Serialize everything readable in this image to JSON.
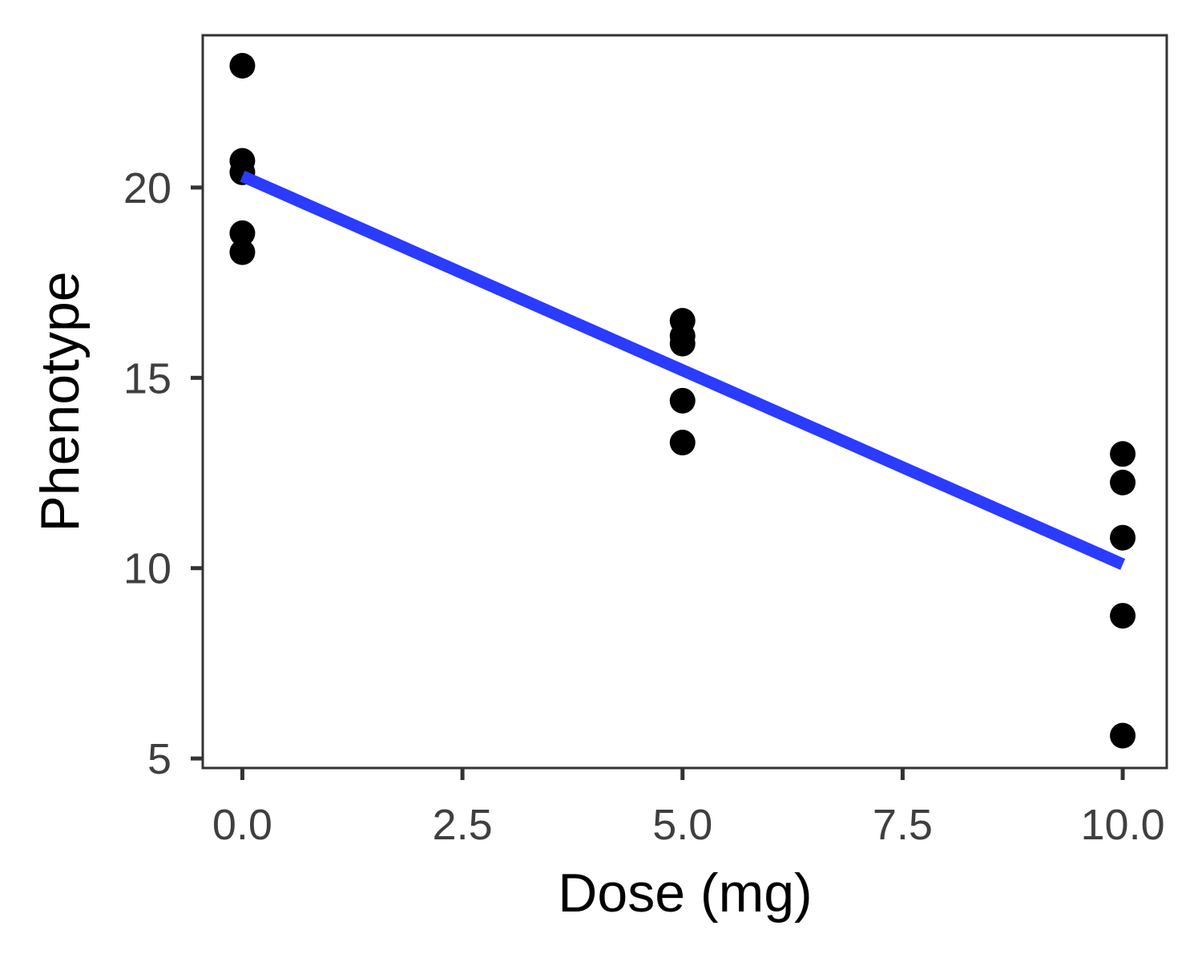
{
  "chart_data": {
    "type": "scatter",
    "title": "",
    "xlabel": "Dose (mg)",
    "ylabel": "Phenotype",
    "xlim": [
      -0.45,
      10.5
    ],
    "ylim": [
      4.75,
      24.0
    ],
    "x_ticks": [
      0,
      2.5,
      5,
      7.5,
      10
    ],
    "x_tick_labels": [
      "0.0",
      "2.5",
      "5.0",
      "7.5",
      "10.0"
    ],
    "y_ticks": [
      5,
      10,
      15,
      20
    ],
    "y_tick_labels": [
      "5",
      "10",
      "15",
      "20"
    ],
    "grid": false,
    "series": [
      {
        "kind": "points",
        "color": "#000000",
        "points": [
          {
            "x": 0,
            "y": 23.2
          },
          {
            "x": 0,
            "y": 20.7
          },
          {
            "x": 0,
            "y": 20.4
          },
          {
            "x": 0,
            "y": 18.8
          },
          {
            "x": 0,
            "y": 18.3
          },
          {
            "x": 5,
            "y": 16.5
          },
          {
            "x": 5,
            "y": 16.1
          },
          {
            "x": 5,
            "y": 15.9
          },
          {
            "x": 5,
            "y": 14.4
          },
          {
            "x": 5,
            "y": 13.3
          },
          {
            "x": 10,
            "y": 13.0
          },
          {
            "x": 10,
            "y": 12.25
          },
          {
            "x": 10,
            "y": 10.8
          },
          {
            "x": 10,
            "y": 8.75
          },
          {
            "x": 10,
            "y": 5.6
          }
        ]
      },
      {
        "kind": "fit-line",
        "color": "#2b3bff",
        "x": [
          0,
          10
        ],
        "y": [
          20.3,
          10.1
        ]
      }
    ]
  }
}
